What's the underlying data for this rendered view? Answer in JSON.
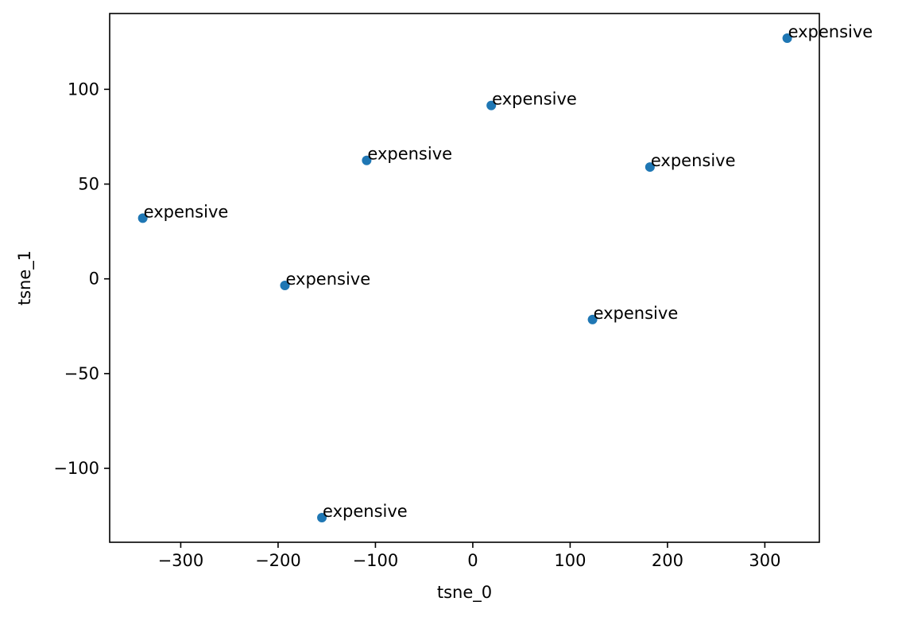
{
  "chart_data": {
    "type": "scatter",
    "title": "",
    "xlabel": "tsne_0",
    "ylabel": "tsne_1",
    "xlim": [
      -373,
      356
    ],
    "ylim": [
      -139,
      140
    ],
    "xticks": [
      -300,
      -200,
      -100,
      0,
      100,
      200,
      300
    ],
    "xtick_labels": [
      "−300",
      "−200",
      "−100",
      "0",
      "100",
      "200",
      "300"
    ],
    "yticks": [
      -100,
      -50,
      0,
      50,
      100
    ],
    "ytick_labels": [
      "−100",
      "−50",
      "0",
      "50",
      "100"
    ],
    "grid": false,
    "marker_color": "#1f77b4",
    "points": [
      {
        "x": 323,
        "y": 127,
        "label": "expensive"
      },
      {
        "x": 19,
        "y": 91.5,
        "label": "expensive"
      },
      {
        "x": -109,
        "y": 62.5,
        "label": "expensive"
      },
      {
        "x": 182,
        "y": 59,
        "label": "expensive"
      },
      {
        "x": -339,
        "y": 32,
        "label": "expensive"
      },
      {
        "x": -193,
        "y": -3.5,
        "label": "expensive"
      },
      {
        "x": 123,
        "y": -21.5,
        "label": "expensive"
      },
      {
        "x": -155,
        "y": -126,
        "label": "expensive"
      }
    ]
  }
}
